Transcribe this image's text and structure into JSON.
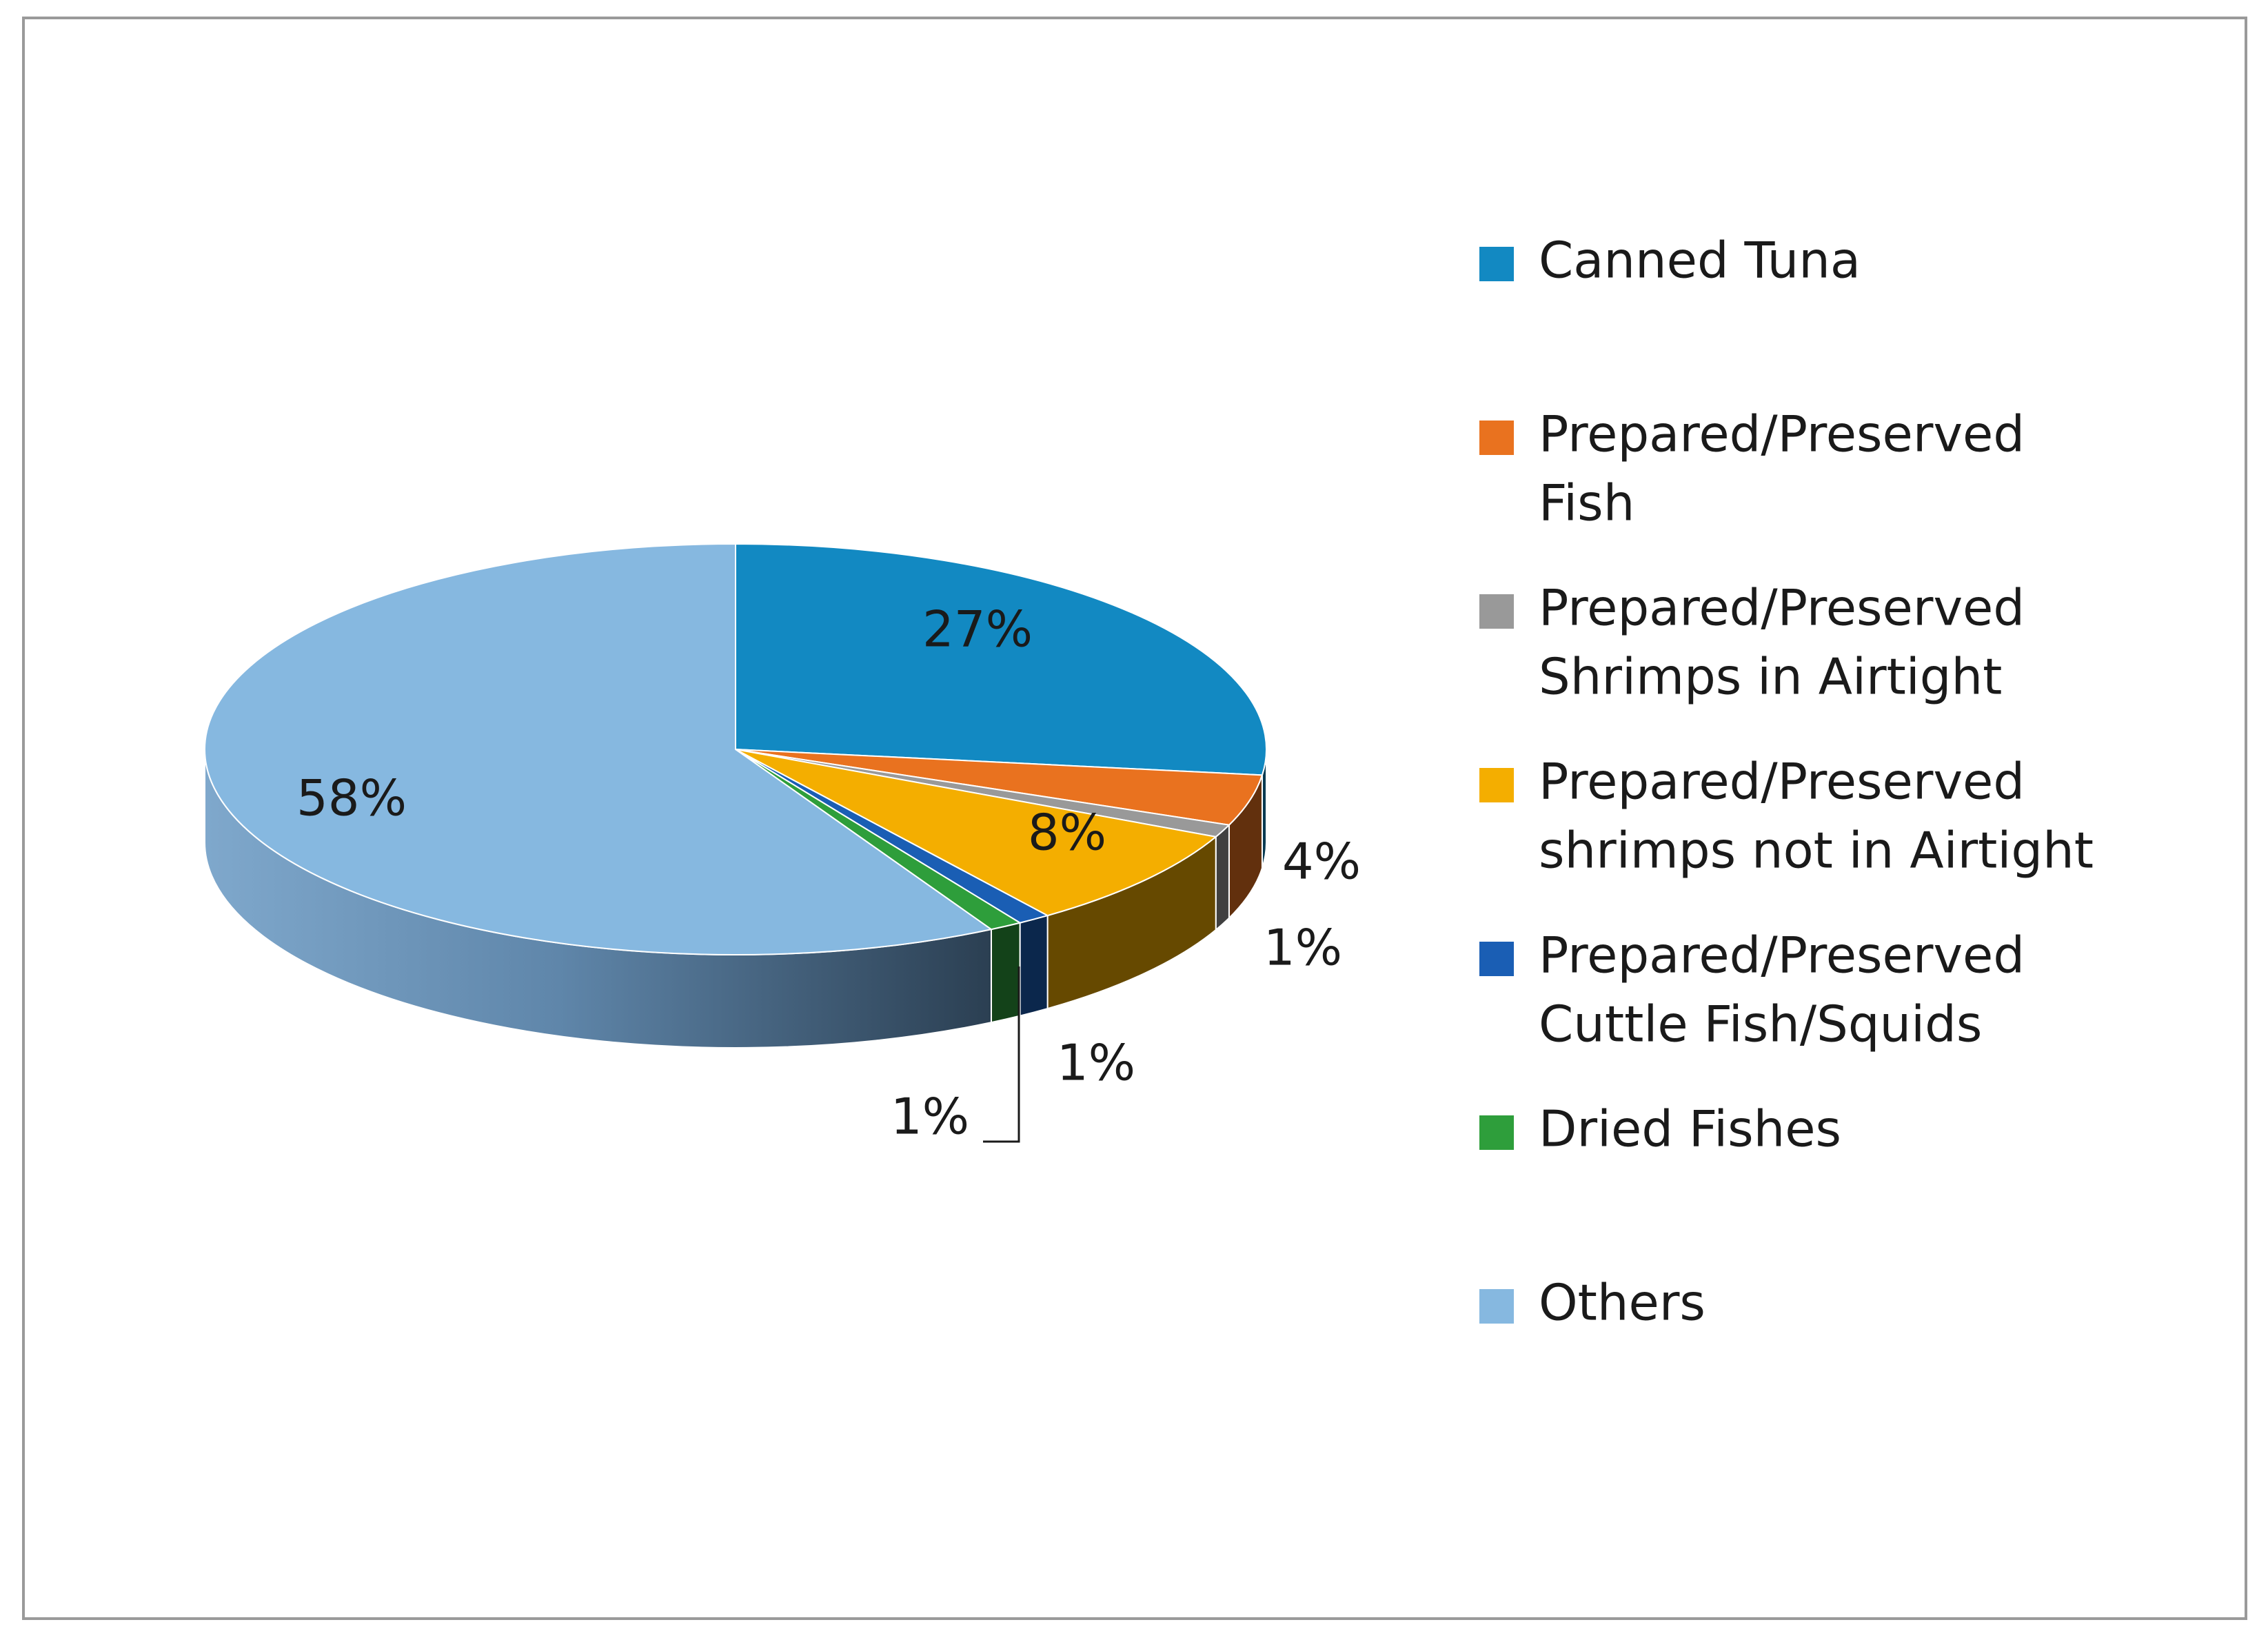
{
  "chart_data": {
    "type": "pie",
    "style": "3d",
    "legend_position": "right",
    "slices": [
      {
        "label": "Canned Tuna",
        "value": 27,
        "display": "27%",
        "color": "#1289C2"
      },
      {
        "label": "Prepared/Preserved Fish",
        "value": 4,
        "display": "4%",
        "color": "#E9721F"
      },
      {
        "label": "Prepared/Preserved Shrimps in Airtight",
        "value": 1,
        "display": "1%",
        "color": "#999999"
      },
      {
        "label": "Prepared/Preserved shrimps not in Airtight",
        "value": 8,
        "display": "8%",
        "color": "#F4AE00"
      },
      {
        "label": "Prepared/Preserved Cuttle Fish/Squids",
        "value": 1,
        "display": "1%",
        "color": "#1A5EB4"
      },
      {
        "label": "Dried Fishes",
        "value": 1,
        "display": "1%",
        "color": "#2E9E3B"
      },
      {
        "label": "Others",
        "value": 58,
        "display": "58%",
        "color": "#86B8E0"
      }
    ],
    "legend": [
      {
        "lines": [
          "Canned Tuna"
        ],
        "color": "#1289C2"
      },
      {
        "lines": [
          "Prepared/Preserved",
          "Fish"
        ],
        "color": "#E9721F"
      },
      {
        "lines": [
          "Prepared/Preserved",
          "Shrimps in Airtight"
        ],
        "color": "#999999"
      },
      {
        "lines": [
          "Prepared/Preserved",
          "shrimps not in Airtight"
        ],
        "color": "#F4AE00"
      },
      {
        "lines": [
          "Prepared/Preserved",
          "Cuttle Fish/Squids"
        ],
        "color": "#1A5EB4"
      },
      {
        "lines": [
          "Dried Fishes"
        ],
        "color": "#2E9E3B"
      },
      {
        "lines": [
          "Others"
        ],
        "color": "#86B8E0"
      }
    ]
  }
}
